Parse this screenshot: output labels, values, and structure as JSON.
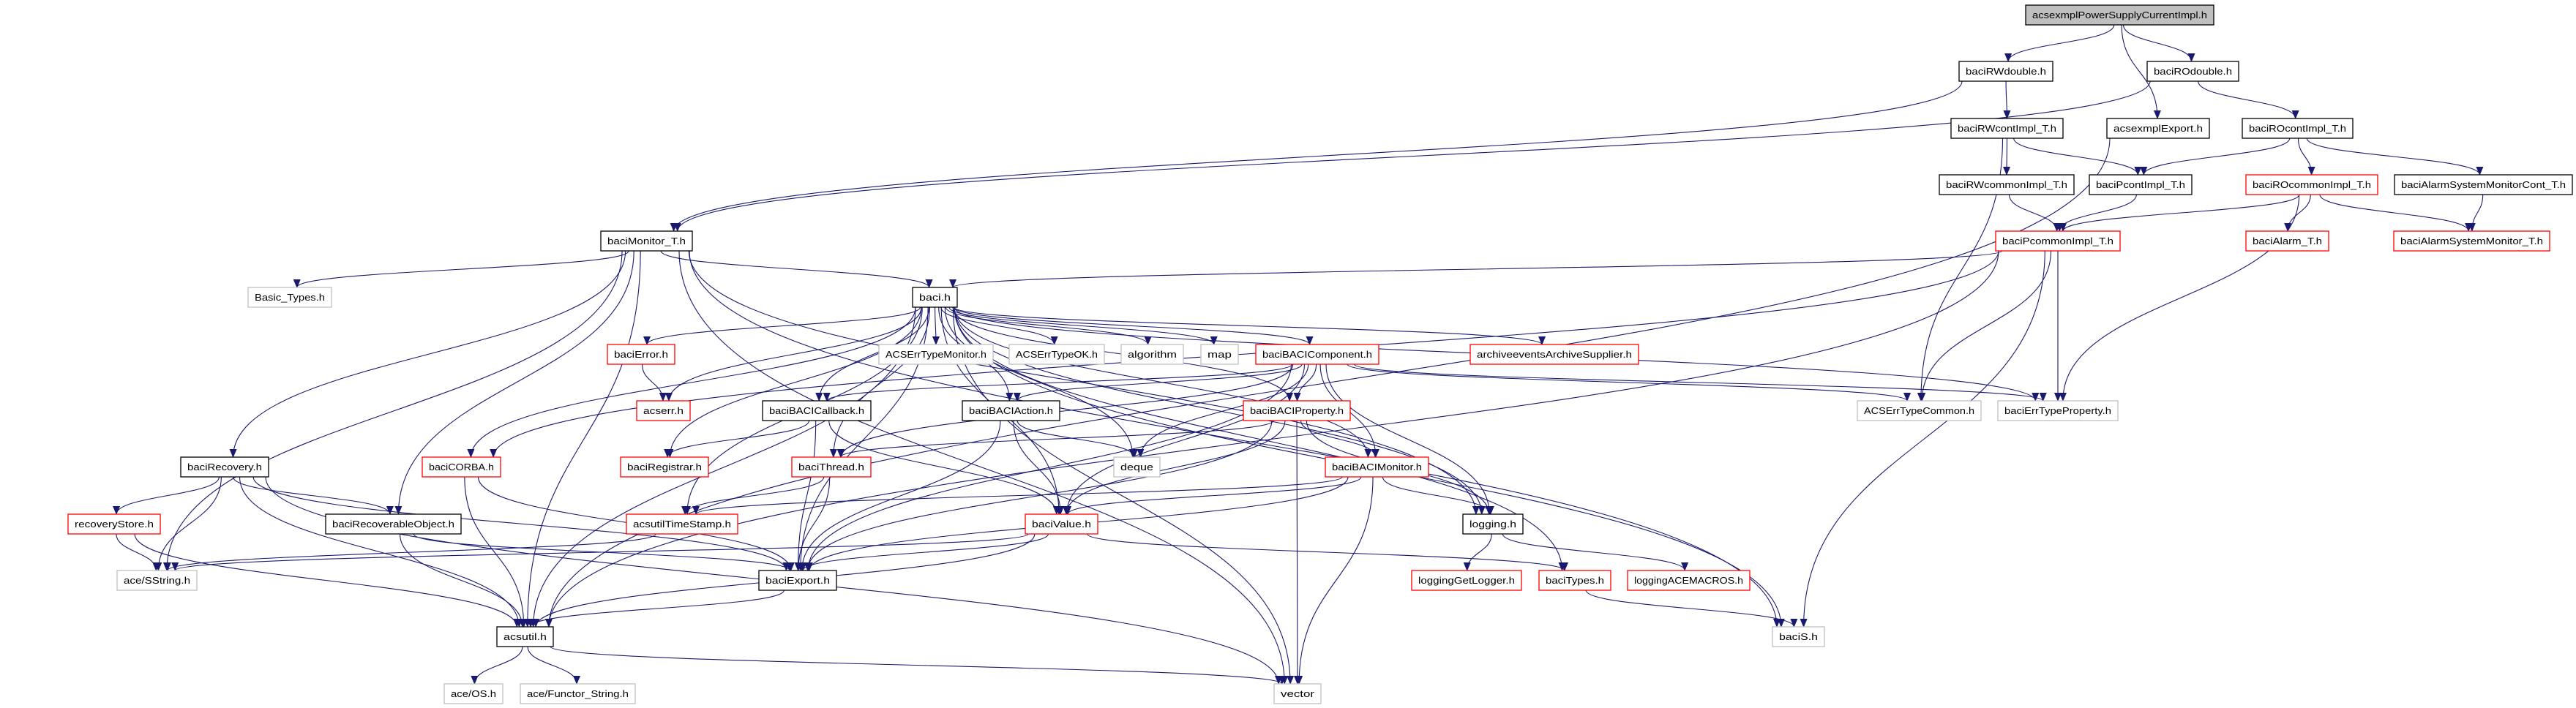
{
  "colors": {
    "edge": "#191970",
    "border_documented": "#000000",
    "border_truncated": "#ff0000",
    "border_external": "#bfbfbf",
    "root_fill": "#bfbfbf"
  },
  "nodes": [
    {
      "id": "root",
      "label": "acsexmplPowerSupplyCurrentImpl.h",
      "kind": "root"
    },
    {
      "id": "rwdouble",
      "label": "baciRWdouble.h",
      "kind": "documented"
    },
    {
      "id": "rodouble",
      "label": "baciROdouble.h",
      "kind": "documented"
    },
    {
      "id": "rwcont",
      "label": "baciRWcontImpl_T.h",
      "kind": "documented"
    },
    {
      "id": "export",
      "label": "acsexmplExport.h",
      "kind": "documented"
    },
    {
      "id": "rocont",
      "label": "baciROcontImpl_T.h",
      "kind": "documented"
    },
    {
      "id": "rwcommon",
      "label": "baciRWcommonImpl_T.h",
      "kind": "documented"
    },
    {
      "id": "pcont",
      "label": "baciPcontImpl_T.h",
      "kind": "documented"
    },
    {
      "id": "rocommon",
      "label": "baciROcommonImpl_T.h",
      "kind": "truncated"
    },
    {
      "id": "asmcont",
      "label": "baciAlarmSystemMonitorCont_T.h",
      "kind": "documented"
    },
    {
      "id": "pcommon",
      "label": "baciPcommonImpl_T.h",
      "kind": "truncated"
    },
    {
      "id": "alarm",
      "label": "baciAlarm_T.h",
      "kind": "truncated"
    },
    {
      "id": "asm",
      "label": "baciAlarmSystemMonitor_T.h",
      "kind": "truncated"
    },
    {
      "id": "monitor_t",
      "label": "baciMonitor_T.h",
      "kind": "documented"
    },
    {
      "id": "basictypes",
      "label": "Basic_Types.h",
      "kind": "external"
    },
    {
      "id": "baci",
      "label": "baci.h",
      "kind": "documented"
    },
    {
      "id": "bacierror",
      "label": "baciError.h",
      "kind": "truncated"
    },
    {
      "id": "errmonitor",
      "label": "ACSErrTypeMonitor.h",
      "kind": "external"
    },
    {
      "id": "errok",
      "label": "ACSErrTypeOK.h",
      "kind": "external"
    },
    {
      "id": "algorithm",
      "label": "algorithm",
      "kind": "external"
    },
    {
      "id": "map",
      "label": "map",
      "kind": "external"
    },
    {
      "id": "component",
      "label": "baciBACIComponent.h",
      "kind": "truncated"
    },
    {
      "id": "archive",
      "label": "archiveeventsArchiveSupplier.h",
      "kind": "truncated"
    },
    {
      "id": "acserr",
      "label": "acserr.h",
      "kind": "truncated"
    },
    {
      "id": "callback",
      "label": "baciBACICallback.h",
      "kind": "documented"
    },
    {
      "id": "action",
      "label": "baciBACIAction.h",
      "kind": "documented"
    },
    {
      "id": "property",
      "label": "baciBACIProperty.h",
      "kind": "truncated"
    },
    {
      "id": "errcommon",
      "label": "ACSErrTypeCommon.h",
      "kind": "external"
    },
    {
      "id": "errprop",
      "label": "baciErrTypeProperty.h",
      "kind": "external"
    },
    {
      "id": "recovery",
      "label": "baciRecovery.h",
      "kind": "documented"
    },
    {
      "id": "corba",
      "label": "baciCORBA.h",
      "kind": "truncated"
    },
    {
      "id": "registrar",
      "label": "baciRegistrar.h",
      "kind": "truncated"
    },
    {
      "id": "thread",
      "label": "baciThread.h",
      "kind": "truncated"
    },
    {
      "id": "deque",
      "label": "deque",
      "kind": "external"
    },
    {
      "id": "bacimonitor",
      "label": "baciBACIMonitor.h",
      "kind": "truncated"
    },
    {
      "id": "recstore",
      "label": "recoveryStore.h",
      "kind": "truncated"
    },
    {
      "id": "recobj",
      "label": "baciRecoverableObject.h",
      "kind": "documented"
    },
    {
      "id": "timestamp",
      "label": "acsutilTimeStamp.h",
      "kind": "truncated"
    },
    {
      "id": "value",
      "label": "baciValue.h",
      "kind": "truncated"
    },
    {
      "id": "logging",
      "label": "logging.h",
      "kind": "documented"
    },
    {
      "id": "sstring",
      "label": "ace/SString.h",
      "kind": "external"
    },
    {
      "id": "baciexport",
      "label": "baciExport.h",
      "kind": "documented"
    },
    {
      "id": "getlogger",
      "label": "loggingGetLogger.h",
      "kind": "truncated"
    },
    {
      "id": "types",
      "label": "baciTypes.h",
      "kind": "truncated"
    },
    {
      "id": "acemacros",
      "label": "loggingACEMACROS.h",
      "kind": "truncated"
    },
    {
      "id": "acsutil",
      "label": "acsutil.h",
      "kind": "documented"
    },
    {
      "id": "bacis",
      "label": "baciS.h",
      "kind": "external"
    },
    {
      "id": "aceos",
      "label": "ace/OS.h",
      "kind": "external"
    },
    {
      "id": "functor",
      "label": "ace/Functor_String.h",
      "kind": "external"
    },
    {
      "id": "vector",
      "label": "vector",
      "kind": "external"
    }
  ],
  "edges": [
    [
      "root",
      "rwdouble"
    ],
    [
      "root",
      "rodouble"
    ],
    [
      "root",
      "export"
    ],
    [
      "rwdouble",
      "rwcont"
    ],
    [
      "rwdouble",
      "monitor_t"
    ],
    [
      "rodouble",
      "rocont"
    ],
    [
      "rodouble",
      "monitor_t"
    ],
    [
      "rwcont",
      "rwcommon"
    ],
    [
      "rwcont",
      "pcont"
    ],
    [
      "rwcont",
      "errcommon"
    ],
    [
      "rocont",
      "pcont"
    ],
    [
      "rocont",
      "rocommon"
    ],
    [
      "rocont",
      "asmcont"
    ],
    [
      "export",
      "acsutil"
    ],
    [
      "rwcommon",
      "pcommon"
    ],
    [
      "pcont",
      "pcommon"
    ],
    [
      "rocommon",
      "pcommon"
    ],
    [
      "rocommon",
      "alarm"
    ],
    [
      "rocommon",
      "asm"
    ],
    [
      "rocommon",
      "errprop"
    ],
    [
      "asmcont",
      "asm"
    ],
    [
      "pcommon",
      "baci"
    ],
    [
      "pcommon",
      "corba"
    ],
    [
      "pcommon",
      "errcommon"
    ],
    [
      "pcommon",
      "errprop"
    ],
    [
      "pcommon",
      "acsutil"
    ],
    [
      "pcommon",
      "bacis"
    ],
    [
      "monitor_t",
      "baci"
    ],
    [
      "monitor_t",
      "basictypes"
    ],
    [
      "monitor_t",
      "recovery"
    ],
    [
      "monitor_t",
      "recobj"
    ],
    [
      "monitor_t",
      "sstring"
    ],
    [
      "monitor_t",
      "acsutil"
    ],
    [
      "monitor_t",
      "bacis"
    ],
    [
      "monitor_t",
      "logging"
    ],
    [
      "monitor_t",
      "vector"
    ],
    [
      "baci",
      "bacierror"
    ],
    [
      "baci",
      "acserr"
    ],
    [
      "baci",
      "errmonitor"
    ],
    [
      "baci",
      "errok"
    ],
    [
      "baci",
      "algorithm"
    ],
    [
      "baci",
      "map"
    ],
    [
      "baci",
      "component"
    ],
    [
      "baci",
      "archive"
    ],
    [
      "baci",
      "callback"
    ],
    [
      "baci",
      "action"
    ],
    [
      "baci",
      "property"
    ],
    [
      "baci",
      "bacimonitor"
    ],
    [
      "baci",
      "value"
    ],
    [
      "baci",
      "thread"
    ],
    [
      "baci",
      "registrar"
    ],
    [
      "baci",
      "timestamp"
    ],
    [
      "baci",
      "corba"
    ],
    [
      "baci",
      "baciexport"
    ],
    [
      "baci",
      "acsutil"
    ],
    [
      "baci",
      "logging"
    ],
    [
      "baci",
      "types"
    ],
    [
      "baci",
      "errprop"
    ],
    [
      "baci",
      "bacis"
    ],
    [
      "baci",
      "vector"
    ],
    [
      "baci",
      "deque"
    ],
    [
      "bacierror",
      "acserr"
    ],
    [
      "component",
      "callback"
    ],
    [
      "component",
      "action"
    ],
    [
      "component",
      "property"
    ],
    [
      "component",
      "bacimonitor"
    ],
    [
      "component",
      "value"
    ],
    [
      "component",
      "thread"
    ],
    [
      "component",
      "logging"
    ],
    [
      "component",
      "errcommon"
    ],
    [
      "component",
      "errprop"
    ],
    [
      "component",
      "deque"
    ],
    [
      "component",
      "baciexport"
    ],
    [
      "callback",
      "registrar"
    ],
    [
      "callback",
      "baciexport"
    ],
    [
      "callback",
      "value"
    ],
    [
      "action",
      "deque"
    ],
    [
      "action",
      "value"
    ],
    [
      "action",
      "baciexport"
    ],
    [
      "property",
      "bacimonitor"
    ],
    [
      "property",
      "value"
    ],
    [
      "property",
      "logging"
    ],
    [
      "property",
      "vector"
    ],
    [
      "property",
      "thread"
    ],
    [
      "property",
      "baciexport"
    ],
    [
      "bacimonitor",
      "value"
    ],
    [
      "bacimonitor",
      "logging"
    ],
    [
      "bacimonitor",
      "vector"
    ],
    [
      "bacimonitor",
      "baciexport"
    ],
    [
      "bacimonitor",
      "timestamp"
    ],
    [
      "recovery",
      "recstore"
    ],
    [
      "recovery",
      "sstring"
    ],
    [
      "recovery",
      "recobj"
    ],
    [
      "recovery",
      "acsutil"
    ],
    [
      "recovery",
      "baciexport"
    ],
    [
      "recovery",
      "vector"
    ],
    [
      "recstore",
      "sstring"
    ],
    [
      "recstore",
      "acsutil"
    ],
    [
      "recobj",
      "baciexport"
    ],
    [
      "recobj",
      "acsutil"
    ],
    [
      "corba",
      "acsutil"
    ],
    [
      "corba",
      "baciexport"
    ],
    [
      "thread",
      "timestamp"
    ],
    [
      "thread",
      "baciexport"
    ],
    [
      "timestamp",
      "sstring"
    ],
    [
      "value",
      "sstring"
    ],
    [
      "value",
      "baciexport"
    ],
    [
      "value",
      "types"
    ],
    [
      "value",
      "acsutil"
    ],
    [
      "logging",
      "getlogger"
    ],
    [
      "logging",
      "acemacros"
    ],
    [
      "types",
      "bacis"
    ],
    [
      "baciexport",
      "acsutil"
    ],
    [
      "acsutil",
      "aceos"
    ],
    [
      "acsutil",
      "functor"
    ],
    [
      "acsutil",
      "vector"
    ]
  ]
}
